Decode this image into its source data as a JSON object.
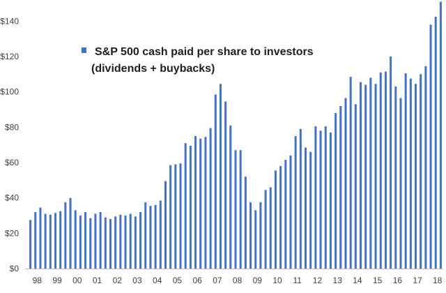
{
  "colors": {
    "bar": "#4472c4",
    "axis": "#bfbfbf",
    "text": "#404040",
    "title": "#1f1f1f"
  },
  "chart_data": {
    "type": "bar",
    "title_lines": [
      "S&P 500 cash paid per share to investors",
      "(dividends + buybacks)"
    ],
    "legend": {
      "label": "S&P 500 cash paid per share to investors",
      "placement": "top-left",
      "marker_color": "#4472c4"
    },
    "xlabel": "",
    "ylabel": "",
    "grid": false,
    "ylim": [
      0,
      150
    ],
    "yticks": [
      {
        "value": 0,
        "label": "$0"
      },
      {
        "value": 20,
        "label": "$20"
      },
      {
        "value": 40,
        "label": "$40"
      },
      {
        "value": 60,
        "label": "$60"
      },
      {
        "value": 80,
        "label": "$80"
      },
      {
        "value": 100,
        "label": "$100"
      },
      {
        "value": 120,
        "label": "$120"
      },
      {
        "value": 140,
        "label": "$140"
      }
    ],
    "xticks": [
      "98",
      "99",
      "00",
      "01",
      "02",
      "03",
      "04",
      "05",
      "06",
      "07",
      "08",
      "09",
      "10",
      "11",
      "12",
      "13",
      "14",
      "15",
      "16",
      "17",
      "18"
    ],
    "bars_per_year": 4,
    "values": [
      27.5,
      32,
      34.5,
      31,
      30.5,
      31.5,
      32.5,
      37.5,
      40,
      33,
      30,
      32,
      28.5,
      31,
      32,
      29,
      28,
      29.5,
      30.5,
      30,
      31,
      29.5,
      32,
      37.5,
      35.5,
      36,
      38.5,
      49.5,
      58.5,
      59,
      59.5,
      71,
      69.5,
      75,
      73.5,
      74.5,
      79.5,
      98.5,
      104.5,
      94.5,
      81,
      67,
      67,
      52,
      37.5,
      33,
      37.5,
      44.5,
      46,
      55.5,
      58,
      61.5,
      64,
      75,
      79,
      68.5,
      66,
      80.5,
      78,
      80.5,
      77,
      88,
      92,
      96.5,
      108.5,
      93,
      105.5,
      104,
      108,
      104.5,
      111,
      111.5,
      120,
      103,
      96.5,
      110.5,
      107.5,
      104.5,
      110,
      114.5,
      138,
      142.5,
      151
    ]
  }
}
